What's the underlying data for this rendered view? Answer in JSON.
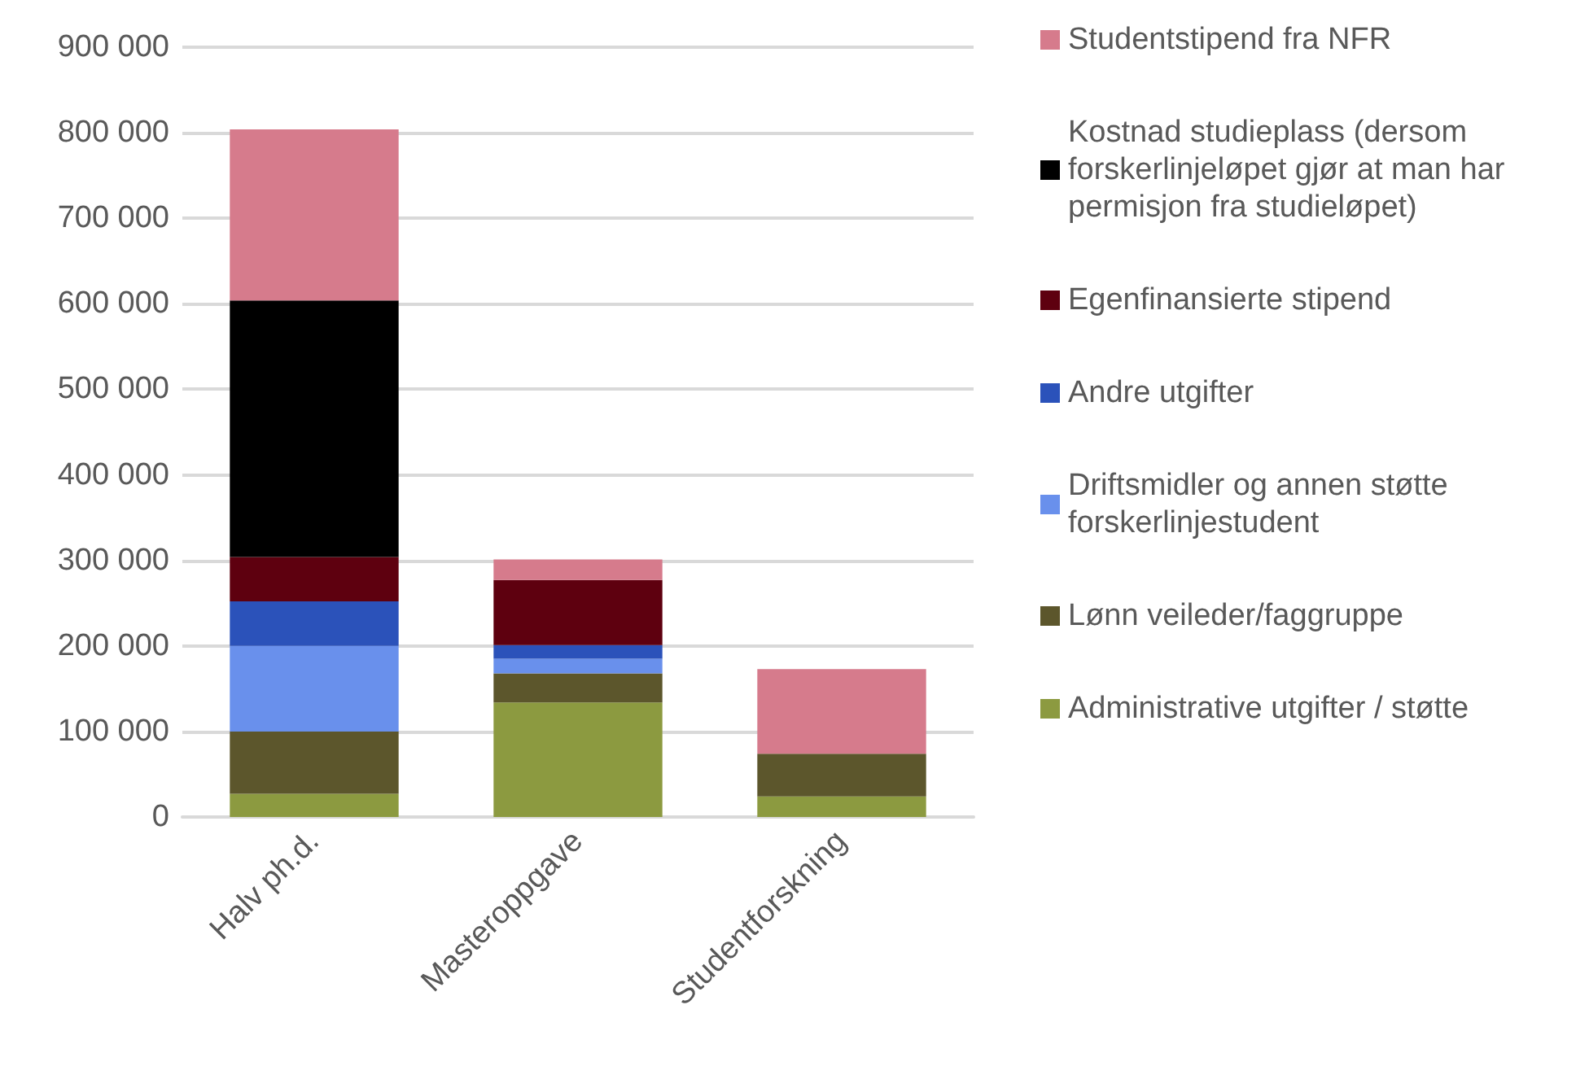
{
  "chart_data": {
    "type": "bar",
    "stacked": true,
    "categories": [
      "Halv ph.d.",
      "Masteroppgave",
      "Studentforskning"
    ],
    "series": [
      {
        "name": "Administrative utgifter / støtte",
        "color": "#8c9a40",
        "values": [
          27000,
          134000,
          24000
        ]
      },
      {
        "name": "Lønn veileder/faggruppe",
        "color": "#5c562c",
        "values": [
          73000,
          34000,
          50000
        ]
      },
      {
        "name": "Driftsmidler og annen støtte forskerlinjestudent",
        "color": "#6990ec",
        "values": [
          100000,
          17000,
          null
        ]
      },
      {
        "name": "Andre utgifter",
        "color": "#2b52ba",
        "values": [
          52000,
          16000,
          null
        ]
      },
      {
        "name": "Egenfinansierte stipend",
        "color": "#5e000f",
        "values": [
          52000,
          76000,
          null
        ]
      },
      {
        "name": "Kostnad studieplass (dersom forskerlinjeløpet gjør at man har permisjon fra studieløpet)",
        "color": "#000000",
        "values": [
          300000,
          null,
          null
        ]
      },
      {
        "name": "Studentstipend fra NFR",
        "color": "#d67b8c",
        "values": [
          200000,
          24000,
          99000
        ]
      }
    ],
    "ylim": [
      0,
      900000
    ],
    "yticks": [
      0,
      100000,
      200000,
      300000,
      400000,
      500000,
      600000,
      700000,
      800000,
      900000
    ],
    "grid": "y",
    "legend": "right"
  }
}
